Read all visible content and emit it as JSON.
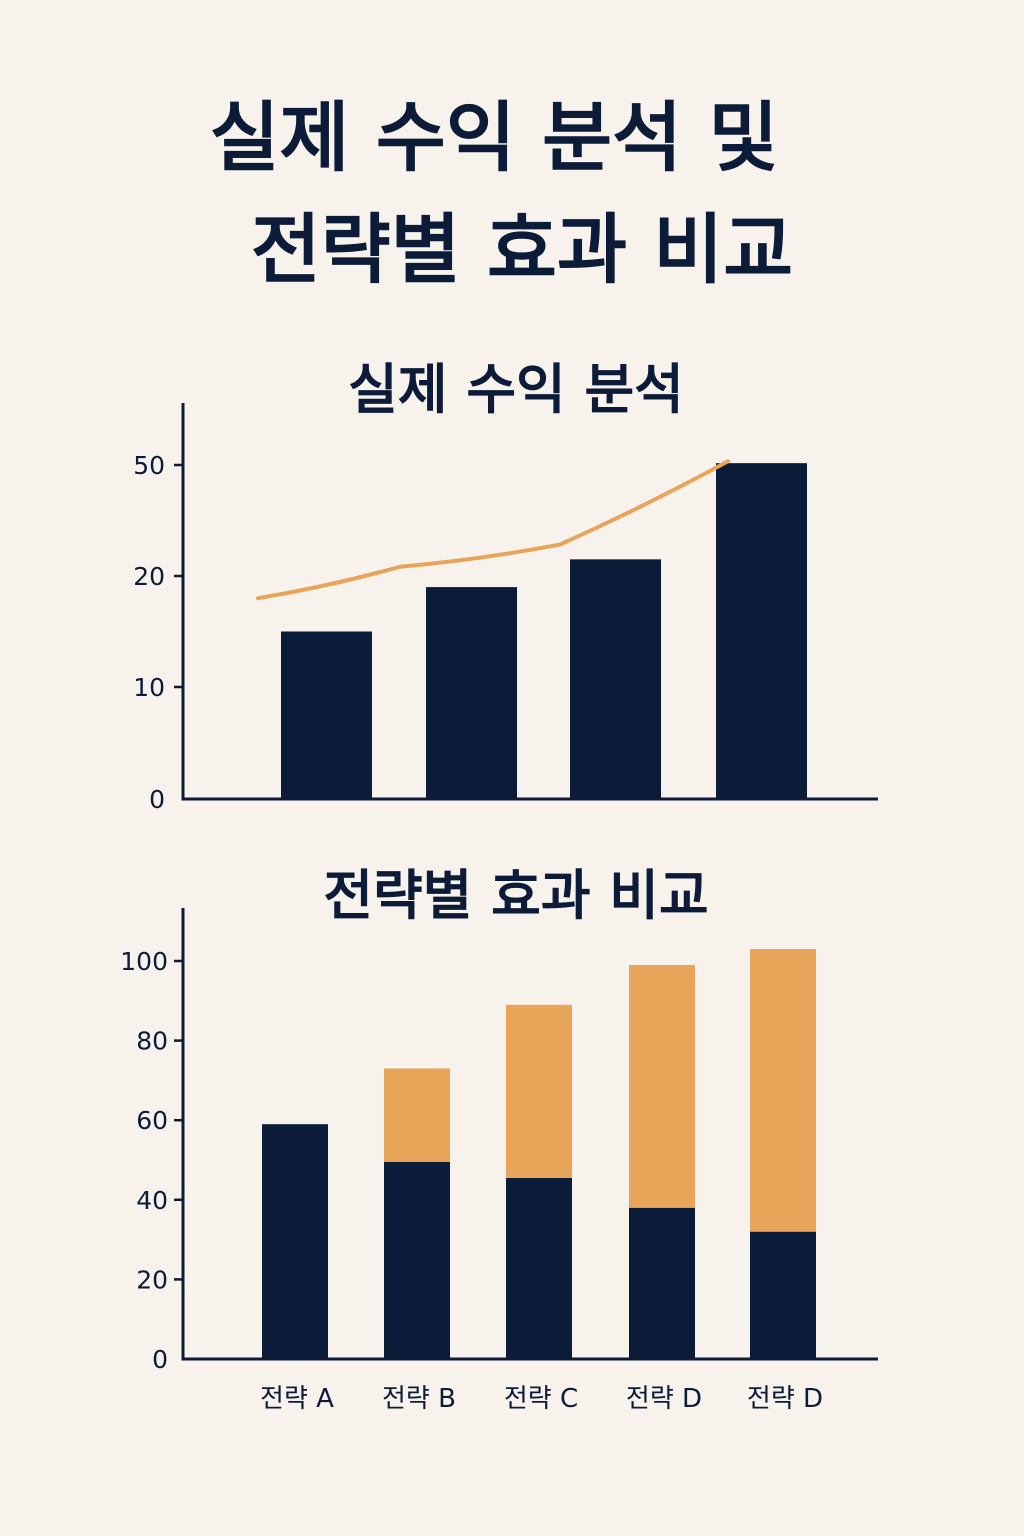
{
  "title": {
    "line1": "실제 수익 분석 및",
    "line2": "전략별 효과 비교"
  },
  "colors": {
    "background": "#f7f3ec",
    "navy": "#0c1b38",
    "orange": "#e8a55a"
  },
  "chart_data": [
    {
      "type": "bar",
      "title": "실제 수익 분석",
      "xlabel": "",
      "ylabel": "",
      "y_ticks": [
        "0",
        "10",
        "20",
        "50"
      ],
      "categories": [
        "",
        "",
        "",
        ""
      ],
      "values": [
        15,
        19,
        24.5,
        50.5
      ],
      "trend_line": [
        18,
        22.5,
        28.5,
        51
      ],
      "grid": false,
      "legend": "none"
    },
    {
      "type": "bar",
      "stacked": true,
      "title": "전략별 효과 비교",
      "xlabel": "",
      "ylabel": "",
      "y_ticks": [
        "0",
        "20",
        "40",
        "60",
        "80",
        "100"
      ],
      "ylim": [
        0,
        110
      ],
      "categories": [
        "전략 A",
        "전략 B",
        "전략 C",
        "전략 D",
        "전략 D"
      ],
      "series": [
        {
          "values": [
            59,
            49.5,
            45.5,
            38,
            32
          ]
        },
        {
          "values": [
            0,
            23.5,
            43.5,
            61,
            71
          ]
        }
      ],
      "grid": false,
      "legend": "none"
    }
  ]
}
